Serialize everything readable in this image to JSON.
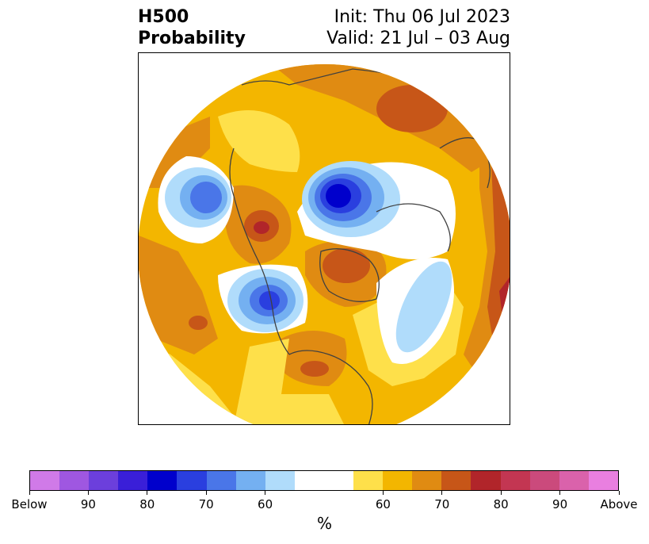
{
  "header": {
    "title_line1": "H500",
    "title_line2": "Probability",
    "init_text": "Init: Thu 06 Jul 2023",
    "valid_text": "Valid: 21 Jul – 03 Aug"
  },
  "colorbar": {
    "unit": "%",
    "colors": [
      "#d07ae8",
      "#9f57e1",
      "#6c3fdc",
      "#3a1fd8",
      "#0000cc",
      "#2a3fdf",
      "#4a76e8",
      "#74b0f1",
      "#b0dcfb",
      "#ffffff",
      "#ffffff",
      "#fee04a",
      "#f3b600",
      "#e08b12",
      "#c75618",
      "#b1252a",
      "#c33652",
      "#cb4a7c",
      "#da62ab",
      "#e97fe0"
    ],
    "tick_labels": [
      "Below",
      "90",
      "80",
      "70",
      "60",
      "60",
      "70",
      "80",
      "90",
      "Above"
    ]
  },
  "map": {
    "projection": "north-polar-stereographic",
    "field": "H500 probability",
    "colors": {
      "yellow": "#fee04a",
      "gold": "#f3b600",
      "orange": "#e08b12",
      "dark_orange": "#c75618",
      "red": "#b1252a",
      "light_blue": "#b0dcfb",
      "blue": "#74b0f1",
      "mid_blue": "#4a76e8",
      "deep_blue": "#0000cc",
      "coastline": "#404040"
    }
  }
}
